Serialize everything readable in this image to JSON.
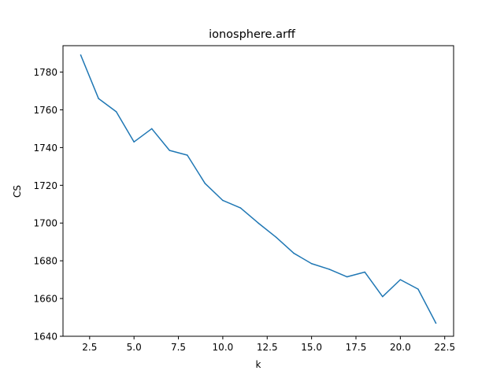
{
  "chart_data": {
    "type": "line",
    "title": "ionosphere.arff",
    "xlabel": "k",
    "ylabel": "CS",
    "xlim": [
      1.0,
      23.0
    ],
    "ylim": [
      1640,
      1794
    ],
    "xticks": [
      2.5,
      5.0,
      7.5,
      10.0,
      12.5,
      15.0,
      17.5,
      20.0,
      22.5
    ],
    "xtick_labels": [
      "2.5",
      "5.0",
      "7.5",
      "10.0",
      "12.5",
      "15.0",
      "17.5",
      "20.0",
      "22.5"
    ],
    "yticks": [
      1640,
      1660,
      1680,
      1700,
      1720,
      1740,
      1760,
      1780
    ],
    "ytick_labels": [
      "1640",
      "1660",
      "1680",
      "1700",
      "1720",
      "1740",
      "1760",
      "1780"
    ],
    "grid": false,
    "colors": {
      "line": "#1f77b4",
      "axis": "#000000"
    },
    "series": [
      {
        "x": [
          2,
          3,
          4,
          5,
          6,
          7,
          8,
          9,
          10,
          11,
          12,
          13,
          14,
          15,
          16,
          17,
          18,
          19,
          20,
          21,
          22
        ],
        "values": [
          1789,
          1766,
          1759,
          1743,
          1750,
          1738.5,
          1736,
          1721,
          1712,
          1708,
          1700,
          1692.5,
          1684,
          1678.5,
          1675.5,
          1671.5,
          1674,
          1661,
          1670,
          1665,
          1647
        ]
      }
    ]
  }
}
